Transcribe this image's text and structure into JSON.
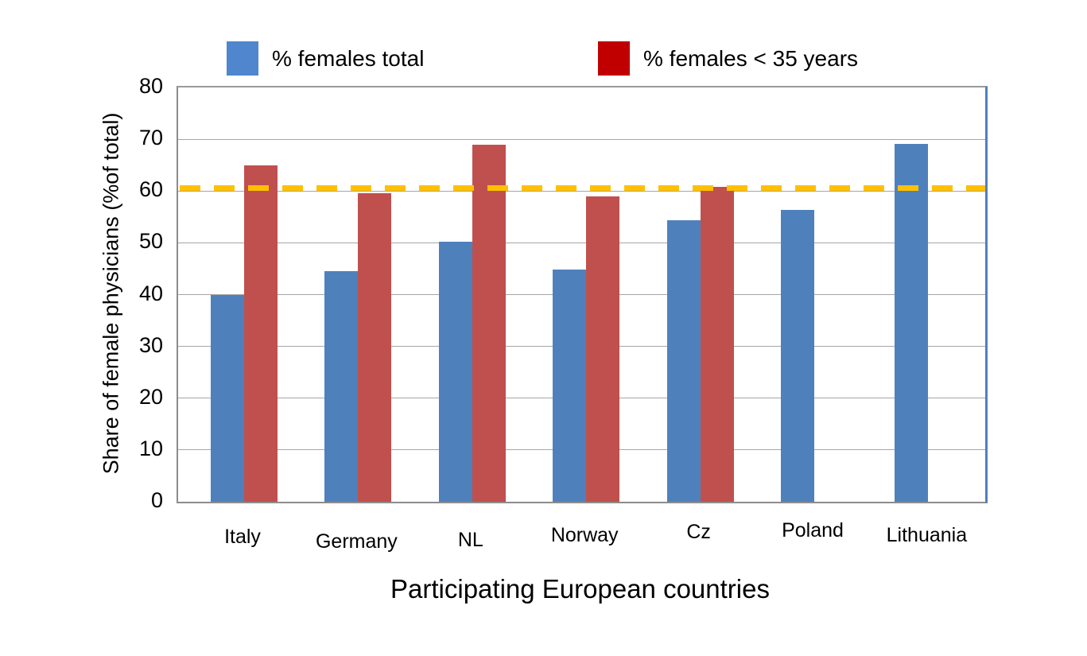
{
  "chart_data": {
    "type": "bar",
    "categories": [
      "Italy",
      "Germany",
      "NL",
      "Norway",
      "Cz",
      "Poland",
      "Lithuania"
    ],
    "series": [
      {
        "name": "% females total",
        "color": "#4E81BC",
        "values": [
          39.9,
          44.5,
          50.2,
          44.8,
          54.4,
          56.4,
          69.1
        ]
      },
      {
        "name": "% females < 35 years",
        "color": "#C0504D",
        "values": [
          65.0,
          59.6,
          69.0,
          58.9,
          60.8,
          null,
          null
        ]
      }
    ],
    "reference_line": {
      "value": 60.5,
      "color": "#FFC000",
      "style": "dashed"
    },
    "xlabel": "Participating European countries",
    "ylabel": "Share of female  physicians (%of total)",
    "ylim": [
      0,
      80
    ],
    "yticks": [
      0,
      10,
      20,
      30,
      40,
      50,
      60,
      70,
      80
    ],
    "grid": "horizontal",
    "legend_position": "top",
    "legend": [
      {
        "label": "% females total",
        "swatch_color": "#4F86CD"
      },
      {
        "label": "% females < 35 years",
        "swatch_color": "#C00000"
      }
    ]
  },
  "colors": {
    "gridline": "#A6A6A6",
    "axis": "#8C8C8C",
    "plot_right_border": "#4F81BD",
    "background": "#FFFFFF"
  }
}
